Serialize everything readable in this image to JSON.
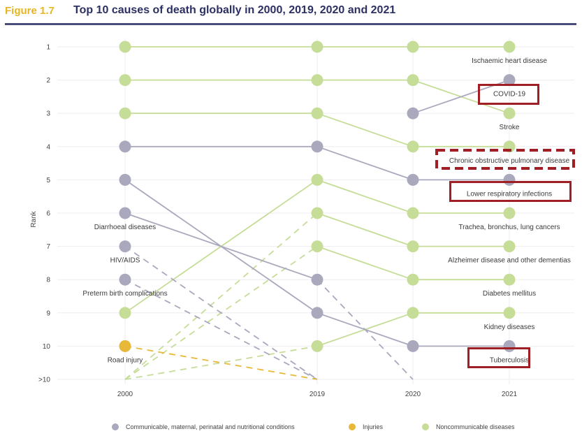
{
  "header": {
    "figure_number": "Figure 1.7",
    "title": "Top 10 causes of death globally in 2000, 2019, 2020 and 2021"
  },
  "colors": {
    "communicable": "#a9a8bd",
    "injuries": "#e8b838",
    "noncommunicable": "#c6dd98",
    "highlight": "#a01f24",
    "figure_number": "#e8b523",
    "title": "#2c3063"
  },
  "legend": [
    {
      "key": "communicable",
      "label": "Communicable, maternal, perinatal and nutritional conditions"
    },
    {
      "key": "injuries",
      "label": "Injuries"
    },
    {
      "key": "noncommunicable",
      "label": "Noncommunicable diseases"
    }
  ],
  "chart_data": {
    "type": "line",
    "title": "Top 10 causes of death globally in 2000, 2019, 2020 and 2021",
    "xlabel": "",
    "ylabel": "Rank",
    "x": [
      "2000",
      "2019",
      "2020",
      "2021"
    ],
    "y_ticks": [
      "1",
      "2",
      "3",
      "4",
      "5",
      "6",
      "7",
      "8",
      "9",
      "10",
      ">10"
    ],
    "grid": true,
    "legend_position": "bottom",
    "series": [
      {
        "name": "Ischaemic heart disease",
        "group": "noncommunicable",
        "ranks": [
          1,
          1,
          1,
          1
        ],
        "label_year": "2021"
      },
      {
        "name": "Stroke",
        "group": "noncommunicable",
        "ranks": [
          2,
          2,
          2,
          3
        ],
        "label_year": "2021"
      },
      {
        "name": "Chronic obstructive pulmonary disease",
        "group": "noncommunicable",
        "ranks": [
          3,
          3,
          4,
          4
        ],
        "label_year": "2021"
      },
      {
        "name": "Lower respiratory infections",
        "group": "communicable",
        "ranks": [
          4,
          4,
          5,
          5
        ],
        "label_year": "2021"
      },
      {
        "name": "COVID-19",
        "group": "communicable",
        "ranks": [
          null,
          null,
          3,
          2
        ],
        "label_year": "2021"
      },
      {
        "name": "Trachea, bronchus, lung cancers",
        "group": "noncommunicable",
        "ranks": [
          9,
          5,
          6,
          6
        ],
        "label_year": "2021"
      },
      {
        "name": "Alzheimer disease and other dementias",
        "group": "noncommunicable",
        "ranks": [
          ">10",
          6,
          7,
          7
        ],
        "label_year": "2021"
      },
      {
        "name": "Diabetes mellitus",
        "group": "noncommunicable",
        "ranks": [
          ">10",
          7,
          8,
          8
        ],
        "label_year": "2021"
      },
      {
        "name": "Kidney diseases",
        "group": "noncommunicable",
        "ranks": [
          ">10",
          10,
          9,
          9
        ],
        "label_year": "2021"
      },
      {
        "name": "Tuberculosis",
        "group": "communicable",
        "ranks": [
          5,
          9,
          10,
          10
        ],
        "label_year": "2021"
      },
      {
        "name": "Diarrhoeal diseases",
        "group": "communicable",
        "ranks": [
          6,
          8,
          ">10",
          null
        ],
        "label_year": "2000"
      },
      {
        "name": "HIV/AIDS",
        "group": "communicable",
        "ranks": [
          7,
          ">10",
          null,
          null
        ],
        "label_year": "2000"
      },
      {
        "name": "Preterm birth complications",
        "group": "communicable",
        "ranks": [
          8,
          ">10",
          null,
          null
        ],
        "label_year": "2000"
      },
      {
        "name": "Road injury",
        "group": "injuries",
        "ranks": [
          10,
          ">10",
          null,
          null
        ],
        "label_year": "2000"
      }
    ],
    "highlighted": [
      {
        "name": "COVID-19",
        "style": "solid"
      },
      {
        "name": "Chronic obstructive pulmonary disease",
        "style": "dashed"
      },
      {
        "name": "Lower respiratory infections",
        "style": "solid"
      },
      {
        "name": "Tuberculosis",
        "style": "solid"
      }
    ]
  }
}
